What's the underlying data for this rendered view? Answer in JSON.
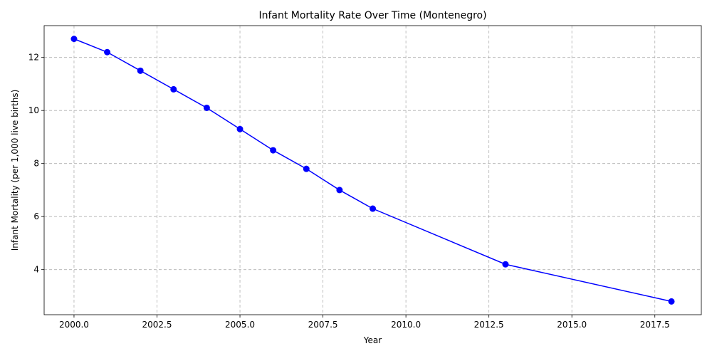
{
  "chart_data": {
    "type": "line",
    "title": "Infant Mortality Rate Over Time (Montenegro)",
    "xlabel": "Year",
    "ylabel": "Infant Mortality (per 1,000 live births)",
    "xlim": [
      1999.1,
      2018.9
    ],
    "ylim": [
      2.3,
      13.2
    ],
    "x_ticks": [
      2000.0,
      2002.5,
      2005.0,
      2007.5,
      2010.0,
      2012.5,
      2015.0,
      2017.5
    ],
    "x_tick_labels": [
      "2000.0",
      "2002.5",
      "2005.0",
      "2007.5",
      "2010.0",
      "2012.5",
      "2015.0",
      "2017.5"
    ],
    "y_ticks": [
      4,
      6,
      8,
      10,
      12
    ],
    "y_tick_labels": [
      "4",
      "6",
      "8",
      "10",
      "12"
    ],
    "grid": true,
    "series": [
      {
        "color": "#0000ff",
        "marker": "circle",
        "points": [
          {
            "x": 2000,
            "y": 12.7
          },
          {
            "x": 2001,
            "y": 12.2
          },
          {
            "x": 2002,
            "y": 11.5
          },
          {
            "x": 2003,
            "y": 10.8
          },
          {
            "x": 2004,
            "y": 10.1
          },
          {
            "x": 2005,
            "y": 9.3
          },
          {
            "x": 2006,
            "y": 8.5
          },
          {
            "x": 2007,
            "y": 7.8
          },
          {
            "x": 2008,
            "y": 7.0
          },
          {
            "x": 2009,
            "y": 6.3
          },
          {
            "x": 2013,
            "y": 4.2
          },
          {
            "x": 2018,
            "y": 2.8
          }
        ]
      }
    ]
  }
}
